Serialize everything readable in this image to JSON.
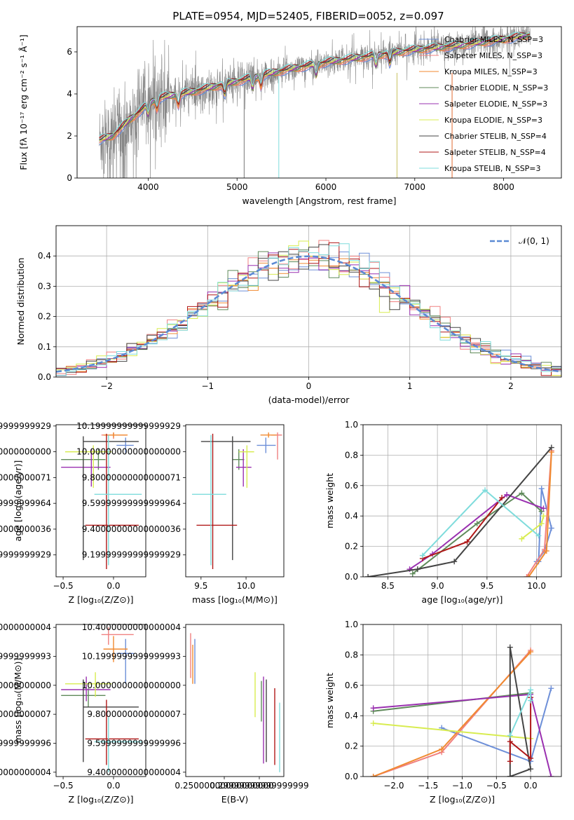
{
  "figure_title": "PLATE=0954, MJD=52405, FIBERID=0052, z=0.097",
  "chart_data": [
    {
      "id": "spec",
      "type": "line",
      "xlabel": "wavelength [Angstrom, rest frame]",
      "ylabel": "Flux [fλ 10⁻¹⁷ erg cm⁻² s⁻¹ Å⁻¹]",
      "xlim": [
        3200,
        8650
      ],
      "ylim": [
        0,
        7.2
      ],
      "xticks": [
        4000,
        5000,
        6000,
        7000,
        8000
      ],
      "yticks": [
        0,
        2,
        4,
        6
      ],
      "legend": {
        "position": "top-right"
      },
      "data_continuum": {
        "x": [
          3450,
          3600,
          3800,
          4000,
          4100,
          4500,
          5000,
          5500,
          6000,
          6500,
          7000,
          7500,
          8000,
          8300
        ],
        "y": [
          1.8,
          2.0,
          2.8,
          3.5,
          3.8,
          4.1,
          4.6,
          5.1,
          5.5,
          5.8,
          6.1,
          6.3,
          6.6,
          6.8
        ]
      },
      "series": [
        {
          "name": "Chabrier MILES, N_SSP=3",
          "color": "#6d8fd8"
        },
        {
          "name": "Salpeter MILES, N_SSP=3",
          "color": "#f08080"
        },
        {
          "name": "Kroupa MILES, N_SSP=3",
          "color": "#f08a30"
        },
        {
          "name": "Chabrier ELODIE, N_SSP=3",
          "color": "#5f8a5a"
        },
        {
          "name": "Salpeter ELODIE, N_SSP=3",
          "color": "#9a30b0"
        },
        {
          "name": "Kroupa ELODIE, N_SSP=3",
          "color": "#d8ec50"
        },
        {
          "name": "Chabrier STELIB, N_SSP=4",
          "color": "#444444"
        },
        {
          "name": "Salpeter STELIB, N_SSP=4",
          "color": "#b01818"
        },
        {
          "name": "Kroupa STELIB, N_SSP=3",
          "color": "#7fdcdc"
        }
      ]
    },
    {
      "id": "hist",
      "type": "line",
      "xlabel": "(data-model)/error",
      "ylabel": "Normed distribution",
      "xlim": [
        -2.5,
        2.5
      ],
      "ylim": [
        0,
        0.5
      ],
      "xticks": [
        -2,
        -1,
        0,
        1,
        2
      ],
      "yticks": [
        0.0,
        0.1,
        0.2,
        0.3,
        0.4
      ],
      "grid": true,
      "legend": {
        "position": "top-right",
        "label": "𝒩(0, 1)"
      },
      "reference": {
        "name": "𝒩(0, 1)",
        "mean": 0,
        "sigma": 1,
        "color": "#5b8ad4"
      },
      "bin_width": 0.1
    },
    {
      "id": "zage",
      "type": "scatter",
      "xlabel": "Z [log₁₀(Z/Z⊙)]",
      "ylabel": "age  [log₁₀(age/yr)]",
      "xlim": [
        -0.57,
        0.32
      ],
      "ylim": [
        9.03,
        10.21
      ],
      "xticks": [
        -0.5,
        0.0
      ],
      "yticks": [
        9.2,
        9.4,
        9.6,
        9.8,
        10.0,
        10.2
      ],
      "points": [
        {
          "s": 0,
          "x": 0.12,
          "y": 10.05,
          "xlo": 0.03,
          "xhi": 0.2,
          "ylo": 9.99,
          "yhi": 10.11
        },
        {
          "s": 1,
          "x": 0.0,
          "y": 10.13,
          "xlo": -0.12,
          "xhi": 0.13,
          "ylo": 10.1,
          "yhi": 10.15
        },
        {
          "s": 2,
          "x": 0.0,
          "y": 10.13,
          "xlo": -0.1,
          "xhi": 0.14,
          "ylo": 10.11,
          "yhi": 10.15
        },
        {
          "s": 3,
          "x": -0.15,
          "y": 9.94,
          "xlo": -0.52,
          "xhi": -0.08,
          "ylo": 9.86,
          "yhi": 10.02
        },
        {
          "s": 4,
          "x": -0.22,
          "y": 9.88,
          "xlo": -0.52,
          "xhi": -0.03,
          "ylo": 9.73,
          "yhi": 10.02
        },
        {
          "s": 5,
          "x": -0.2,
          "y": 10.0,
          "xlo": -0.48,
          "xhi": -0.02,
          "ylo": 9.72,
          "yhi": 10.05
        },
        {
          "s": 6,
          "x": -0.3,
          "y": 10.08,
          "xlo": -0.3,
          "xhi": 0.25,
          "ylo": 9.16,
          "yhi": 10.12
        },
        {
          "s": 7,
          "x": -0.07,
          "y": 9.43,
          "xlo": -0.28,
          "xhi": 0.25,
          "ylo": 9.09,
          "yhi": 10.14
        },
        {
          "s": 8,
          "x": -0.05,
          "y": 9.67,
          "xlo": -0.19,
          "xhi": 0.28,
          "ylo": 9.12,
          "yhi": 10.13
        }
      ]
    },
    {
      "id": "massage",
      "type": "scatter",
      "xlabel": "mass [log₁₀(M/M⊙)]",
      "xlim": [
        9.33,
        10.42
      ],
      "ylim": [
        9.03,
        10.21
      ],
      "xticks": [
        9.5,
        10.0
      ],
      "yticks": [
        9.2,
        9.4,
        9.6,
        9.8,
        10.0,
        10.2
      ],
      "points": [
        {
          "s": 0,
          "x": 10.22,
          "y": 10.05,
          "xlo": 10.12,
          "xhi": 10.33,
          "ylo": 9.99,
          "yhi": 10.11
        },
        {
          "s": 1,
          "x": 10.35,
          "y": 10.13,
          "xlo": 10.28,
          "xhi": 10.4,
          "ylo": 9.94,
          "yhi": 10.15
        },
        {
          "s": 2,
          "x": 10.25,
          "y": 10.13,
          "xlo": 10.16,
          "xhi": 10.34,
          "ylo": 10.11,
          "yhi": 10.15
        },
        {
          "s": 3,
          "x": 9.92,
          "y": 9.94,
          "xlo": 9.85,
          "xhi": 9.98,
          "ylo": 9.86,
          "yhi": 10.02
        },
        {
          "s": 4,
          "x": 9.97,
          "y": 9.88,
          "xlo": 9.89,
          "xhi": 10.06,
          "ylo": 9.73,
          "yhi": 10.02
        },
        {
          "s": 5,
          "x": 10.01,
          "y": 10.0,
          "xlo": 9.92,
          "xhi": 10.09,
          "ylo": 9.72,
          "yhi": 10.05
        },
        {
          "s": 6,
          "x": 9.85,
          "y": 10.08,
          "xlo": 9.5,
          "xhi": 10.05,
          "ylo": 9.16,
          "yhi": 10.12
        },
        {
          "s": 7,
          "x": 9.63,
          "y": 9.43,
          "xlo": 9.45,
          "xhi": 9.9,
          "ylo": 9.09,
          "yhi": 10.14
        },
        {
          "s": 8,
          "x": 9.61,
          "y": 9.67,
          "xlo": 9.4,
          "xhi": 9.78,
          "ylo": 9.12,
          "yhi": 10.13
        }
      ]
    },
    {
      "id": "agew",
      "type": "line",
      "xlabel": "age  [log₁₀(age/yr)]",
      "ylabel": "mass weight",
      "xlim": [
        8.25,
        10.25
      ],
      "ylim": [
        0,
        1
      ],
      "xticks": [
        8.5,
        9.0,
        9.5,
        10.0
      ],
      "yticks": [
        0.0,
        0.2,
        0.4,
        0.6,
        0.8,
        1.0
      ],
      "grid": true,
      "series": [
        {
          "s": 0,
          "x": [
            10.0,
            10.08,
            10.15,
            10.05,
            10.02
          ],
          "y": [
            0.1,
            0.17,
            0.32,
            0.58,
            0.1
          ]
        },
        {
          "s": 1,
          "x": [
            9.9,
            10.08,
            10.15
          ],
          "y": [
            0.0,
            0.18,
            0.83
          ]
        },
        {
          "s": 2,
          "x": [
            9.92,
            10.1,
            10.15
          ],
          "y": [
            0.0,
            0.17,
            0.82
          ]
        },
        {
          "s": 3,
          "x": [
            8.75,
            9.4,
            9.85,
            10.05
          ],
          "y": [
            0.02,
            0.35,
            0.55,
            0.43
          ]
        },
        {
          "s": 4,
          "x": [
            8.72,
            8.95,
            9.7,
            10.07
          ],
          "y": [
            0.05,
            0.15,
            0.54,
            0.45
          ]
        },
        {
          "s": 5,
          "x": [
            9.85,
            10.05,
            10.07
          ],
          "y": [
            0.25,
            0.35,
            0.4
          ]
        },
        {
          "s": 6,
          "x": [
            8.3,
            8.8,
            9.17,
            10.15
          ],
          "y": [
            0.0,
            0.05,
            0.1,
            0.85
          ]
        },
        {
          "s": 7,
          "x": [
            8.85,
            9.3,
            9.65
          ],
          "y": [
            0.12,
            0.23,
            0.52
          ]
        },
        {
          "s": 8,
          "x": [
            8.85,
            9.48,
            10.02
          ],
          "y": [
            0.14,
            0.57,
            0.27
          ]
        }
      ]
    },
    {
      "id": "zmass",
      "type": "scatter",
      "xlabel": "Z [log₁₀(Z/Z⊙)]",
      "ylabel": "mass [log₁₀(M/M⊙)]",
      "xlim": [
        -0.57,
        0.32
      ],
      "ylim": [
        9.37,
        10.42
      ],
      "xticks": [
        -0.5,
        0.0
      ],
      "yticks": [
        9.4,
        9.6,
        9.8,
        10.0,
        10.2,
        10.4
      ],
      "points": [
        {
          "s": 0,
          "x": 0.12,
          "y": 10.22,
          "xlo": 0.03,
          "xhi": 0.2,
          "ylo": 10.01,
          "yhi": 10.32
        },
        {
          "s": 1,
          "x": -0.05,
          "y": 10.35,
          "xlo": -0.12,
          "xhi": 0.2,
          "ylo": 10.28,
          "yhi": 10.4
        },
        {
          "s": 2,
          "x": 0.0,
          "y": 10.25,
          "xlo": -0.1,
          "xhi": 0.14,
          "ylo": 10.16,
          "yhi": 10.34
        },
        {
          "s": 3,
          "x": -0.25,
          "y": 9.93,
          "xlo": -0.52,
          "xhi": -0.08,
          "ylo": 9.85,
          "yhi": 9.98
        },
        {
          "s": 4,
          "x": -0.27,
          "y": 9.97,
          "xlo": -0.52,
          "xhi": -0.03,
          "ylo": 9.89,
          "yhi": 10.06
        },
        {
          "s": 5,
          "x": -0.18,
          "y": 10.01,
          "xlo": -0.48,
          "xhi": -0.02,
          "ylo": 9.92,
          "yhi": 10.09
        },
        {
          "s": 6,
          "x": -0.3,
          "y": 9.85,
          "xlo": -0.3,
          "xhi": 0.25,
          "ylo": 9.47,
          "yhi": 10.04
        },
        {
          "s": 7,
          "x": -0.07,
          "y": 9.63,
          "xlo": -0.28,
          "xhi": 0.25,
          "ylo": 9.45,
          "yhi": 9.9
        },
        {
          "s": 8,
          "x": -0.05,
          "y": 9.61,
          "xlo": -0.19,
          "xhi": 0.28,
          "ylo": 9.4,
          "yhi": 9.78
        }
      ]
    },
    {
      "id": "ebv",
      "type": "scatter",
      "xlabel": "E(B-V)",
      "xlim": [
        0.195,
        0.335
      ],
      "ylim": [
        9.37,
        10.42
      ],
      "xticks": [
        0.25,
        0.3
      ],
      "yticks": [
        9.4,
        9.6,
        9.8,
        10.0,
        10.2,
        10.4
      ],
      "points": [
        {
          "s": 0,
          "x": 0.208,
          "ylo": 10.01,
          "yhi": 10.32
        },
        {
          "s": 1,
          "x": 0.202,
          "ylo": 10.05,
          "yhi": 10.36
        },
        {
          "s": 2,
          "x": 0.205,
          "ylo": 10.01,
          "yhi": 10.28
        },
        {
          "s": 3,
          "x": 0.303,
          "ylo": 9.75,
          "yhi": 10.03
        },
        {
          "s": 4,
          "x": 0.306,
          "ylo": 9.46,
          "yhi": 10.06
        },
        {
          "s": 5,
          "x": 0.294,
          "ylo": 9.78,
          "yhi": 10.09
        },
        {
          "s": 6,
          "x": 0.31,
          "ylo": 9.47,
          "yhi": 10.04
        },
        {
          "s": 7,
          "x": 0.322,
          "ylo": 9.45,
          "yhi": 9.98
        },
        {
          "s": 8,
          "x": 0.329,
          "ylo": 9.4,
          "yhi": 9.88
        }
      ]
    },
    {
      "id": "zw",
      "type": "line",
      "xlabel": "Z [log₁₀(Z/Z⊙)]",
      "ylabel": "mass weight",
      "xlim": [
        -2.45,
        0.45
      ],
      "ylim": [
        0,
        1
      ],
      "xticks": [
        -2.0,
        -1.5,
        -1.0,
        -0.5,
        0.0
      ],
      "yticks": [
        0.0,
        0.2,
        0.4,
        0.6,
        0.8,
        1.0
      ],
      "grid": true,
      "series": [
        {
          "s": 0,
          "x": [
            -1.3,
            0.0,
            0.3
          ],
          "y": [
            0.32,
            0.1,
            0.58
          ]
        },
        {
          "s": 1,
          "x": [
            -2.3,
            -1.3,
            0.0
          ],
          "y": [
            0.0,
            0.16,
            0.83
          ]
        },
        {
          "s": 2,
          "x": [
            -2.3,
            -1.3,
            0.0
          ],
          "y": [
            0.0,
            0.18,
            0.82
          ]
        },
        {
          "s": 3,
          "x": [
            -2.3,
            0.0
          ],
          "y": [
            0.43,
            0.55
          ]
        },
        {
          "s": 4,
          "x": [
            -2.3,
            0.0,
            0.3
          ],
          "y": [
            0.45,
            0.54,
            0.0
          ]
        },
        {
          "s": 5,
          "x": [
            -2.3,
            0.0
          ],
          "y": [
            0.35,
            0.25
          ]
        },
        {
          "s": 6,
          "x": [
            -0.3,
            -0.3,
            0.0,
            -0.3
          ],
          "y": [
            0.0,
            0.85,
            0.05,
            0.0
          ]
        },
        {
          "s": 7,
          "x": [
            -0.3,
            -0.3,
            0.0,
            0.0
          ],
          "y": [
            0.1,
            0.23,
            0.12,
            0.52
          ]
        },
        {
          "s": 8,
          "x": [
            -0.3,
            0.0,
            0.0
          ],
          "y": [
            0.27,
            0.57,
            0.5
          ]
        }
      ]
    }
  ]
}
